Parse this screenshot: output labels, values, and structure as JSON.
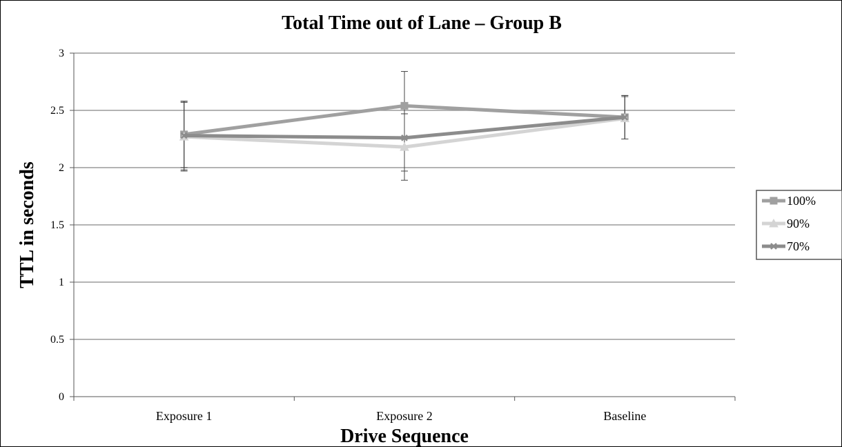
{
  "chart_data": {
    "type": "line",
    "title": "Total Time out of Lane – Group B",
    "xlabel": "Drive Sequence",
    "ylabel": "TTL in seconds",
    "categories": [
      "Exposure 1",
      "Exposure 2",
      "Baseline"
    ],
    "ylim": [
      0,
      3
    ],
    "yticks": [
      "0",
      "0.5",
      "1",
      "1.5",
      "2",
      "2.5",
      "3"
    ],
    "grid": true,
    "legend_position": "right",
    "series": [
      {
        "name": "100%",
        "values": [
          2.29,
          2.54,
          2.44
        ],
        "err_low": [
          2.0,
          2.47,
          2.25
        ],
        "err_high": [
          2.58,
          2.84,
          2.63
        ],
        "color": "#a0a0a0",
        "marker": "square"
      },
      {
        "name": "90%",
        "values": [
          2.27,
          2.18,
          2.43
        ],
        "err_low": [
          1.97,
          1.89,
          2.25
        ],
        "err_high": [
          2.57,
          2.47,
          2.62
        ],
        "color": "#d4d4d4",
        "marker": "triangle"
      },
      {
        "name": "70%",
        "values": [
          2.28,
          2.26,
          2.44
        ],
        "err_low": [
          1.98,
          1.97,
          2.25
        ],
        "err_high": [
          2.58,
          2.56,
          2.63
        ],
        "color": "#8c8c8c",
        "marker": "x"
      }
    ]
  }
}
